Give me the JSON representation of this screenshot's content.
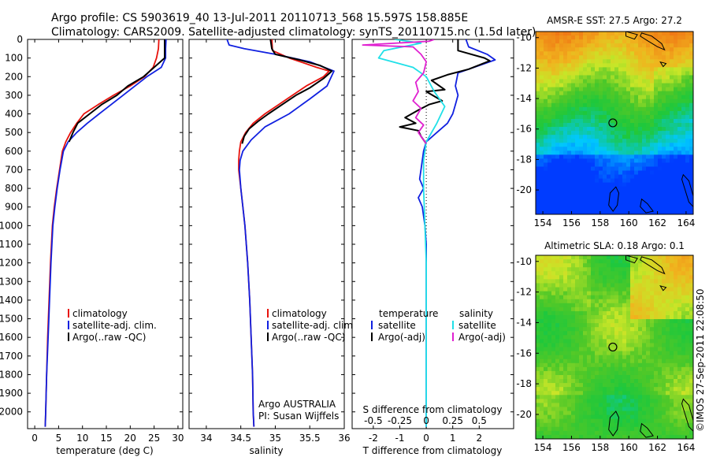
{
  "header": {
    "line1": "Argo profile: CS 5903619_40 13-Jul-2011 20110713_568 15.597S 158.885E",
    "line2": "Climatology: CARS2009. Satellite-adjusted climatology: synTS_20110715.nc (1.5d later)"
  },
  "side_text": "©IMOS 27-Sep-2011 22:08:50",
  "colors": {
    "climatology": "#e8120c",
    "satellite": "#1020e0",
    "argo": "#000000",
    "salinity_satellite": "#20e0e8",
    "salinity_argo": "#e020d0"
  },
  "chart_data": [
    {
      "type": "line",
      "id": "temperature",
      "xlabel": "temperature (deg C)",
      "xlim": [
        -1.5,
        31
      ],
      "xticks": [
        0,
        5,
        10,
        15,
        20,
        25,
        30
      ],
      "ylim": [
        0,
        2090
      ],
      "yticks": [
        0,
        100,
        200,
        300,
        400,
        500,
        600,
        700,
        800,
        900,
        1000,
        1100,
        1200,
        1300,
        1400,
        1500,
        1600,
        1700,
        1800,
        1900,
        2000
      ],
      "legend": [
        "climatology",
        "satellite-adj. clim.",
        "Argo(..raw -QC)"
      ],
      "series": [
        {
          "name": "climatology",
          "color": "#e8120c",
          "points": [
            [
              26.0,
              0
            ],
            [
              25.9,
              50
            ],
            [
              25.5,
              100
            ],
            [
              24.8,
              150
            ],
            [
              23.0,
              200
            ],
            [
              20.0,
              250
            ],
            [
              16.5,
              300
            ],
            [
              13.3,
              350
            ],
            [
              10.3,
              400
            ],
            [
              8.8,
              450
            ],
            [
              7.5,
              500
            ],
            [
              6.5,
              550
            ],
            [
              5.8,
              600
            ],
            [
              5.2,
              700
            ],
            [
              4.6,
              800
            ],
            [
              4.1,
              900
            ],
            [
              3.7,
              1000
            ],
            [
              3.3,
              1200
            ],
            [
              3.0,
              1400
            ],
            [
              2.7,
              1600
            ],
            [
              2.5,
              1800
            ],
            [
              2.3,
              2000
            ],
            [
              2.2,
              2080
            ]
          ]
        },
        {
          "name": "satellite-adj. clim.",
          "color": "#1020e0",
          "points": [
            [
              27.5,
              0
            ],
            [
              27.4,
              50
            ],
            [
              27.4,
              100
            ],
            [
              26.5,
              150
            ],
            [
              23.5,
              200
            ],
            [
              21.0,
              250
            ],
            [
              18.5,
              300
            ],
            [
              16.0,
              350
            ],
            [
              13.5,
              400
            ],
            [
              11.0,
              450
            ],
            [
              8.8,
              500
            ],
            [
              7.0,
              550
            ],
            [
              6.0,
              600
            ],
            [
              5.3,
              700
            ],
            [
              4.7,
              800
            ],
            [
              4.2,
              900
            ],
            [
              3.8,
              1000
            ],
            [
              3.4,
              1200
            ],
            [
              3.1,
              1400
            ],
            [
              2.8,
              1600
            ],
            [
              2.5,
              1800
            ],
            [
              2.3,
              2000
            ],
            [
              2.2,
              2080
            ]
          ]
        },
        {
          "name": "Argo(..raw -QC)",
          "color": "#000000",
          "points": [
            [
              27.2,
              0
            ],
            [
              27.2,
              60
            ],
            [
              27.2,
              100
            ],
            [
              25.0,
              150
            ],
            [
              22.8,
              200
            ],
            [
              19.5,
              250
            ],
            [
              17.2,
              300
            ],
            [
              14.0,
              350
            ],
            [
              11.5,
              400
            ],
            [
              10.0,
              430
            ],
            [
              9.0,
              450
            ],
            [
              8.0,
              500
            ],
            [
              7.2,
              550
            ]
          ]
        }
      ]
    },
    {
      "type": "line",
      "id": "salinity",
      "xlabel": "salinity",
      "xlim": [
        33.75,
        36.0
      ],
      "xticks": [
        34,
        34.5,
        35,
        35.5,
        36
      ],
      "ylim": [
        0,
        2090
      ],
      "legend": [
        "climatology",
        "satellite-adj. clim.",
        "Argo(..raw -QC)"
      ],
      "annotation": [
        "Argo AUSTRALIA",
        "PI: Susan Wijffels"
      ],
      "series": [
        {
          "name": "climatology",
          "color": "#e8120c",
          "points": [
            [
              34.95,
              0
            ],
            [
              34.96,
              60
            ],
            [
              35.2,
              100
            ],
            [
              35.6,
              150
            ],
            [
              35.78,
              170
            ],
            [
              35.7,
              200
            ],
            [
              35.45,
              250
            ],
            [
              35.25,
              300
            ],
            [
              35.05,
              350
            ],
            [
              34.85,
              400
            ],
            [
              34.68,
              450
            ],
            [
              34.57,
              500
            ],
            [
              34.5,
              550
            ],
            [
              34.48,
              600
            ],
            [
              34.47,
              650
            ],
            [
              34.47,
              700
            ],
            [
              34.5,
              800
            ],
            [
              34.53,
              900
            ],
            [
              34.56,
              1000
            ],
            [
              34.6,
              1200
            ],
            [
              34.63,
              1400
            ],
            [
              34.65,
              1600
            ],
            [
              34.67,
              1800
            ],
            [
              34.68,
              2000
            ],
            [
              34.69,
              2080
            ]
          ]
        },
        {
          "name": "satellite-adj. clim.",
          "color": "#1020e0",
          "points": [
            [
              34.3,
              0
            ],
            [
              34.33,
              30
            ],
            [
              34.55,
              50
            ],
            [
              35.0,
              80
            ],
            [
              35.5,
              120
            ],
            [
              35.85,
              170
            ],
            [
              35.75,
              250
            ],
            [
              35.5,
              320
            ],
            [
              35.2,
              400
            ],
            [
              34.85,
              470
            ],
            [
              34.65,
              540
            ],
            [
              34.53,
              600
            ],
            [
              34.49,
              650
            ],
            [
              34.48,
              700
            ],
            [
              34.5,
              800
            ],
            [
              34.53,
              900
            ],
            [
              34.56,
              1000
            ],
            [
              34.6,
              1200
            ],
            [
              34.63,
              1400
            ],
            [
              34.65,
              1600
            ],
            [
              34.67,
              1800
            ],
            [
              34.68,
              2000
            ],
            [
              34.69,
              2080
            ]
          ]
        },
        {
          "name": "Argo(..raw -QC)",
          "color": "#000000",
          "points": [
            [
              34.93,
              0
            ],
            [
              34.95,
              50
            ],
            [
              35.0,
              80
            ],
            [
              35.35,
              110
            ],
            [
              35.65,
              140
            ],
            [
              35.82,
              170
            ],
            [
              35.7,
              210
            ],
            [
              35.5,
              260
            ],
            [
              35.3,
              300
            ],
            [
              35.1,
              350
            ],
            [
              34.9,
              400
            ],
            [
              34.75,
              440
            ],
            [
              34.62,
              480
            ],
            [
              34.55,
              520
            ],
            [
              34.52,
              560
            ]
          ]
        }
      ]
    },
    {
      "type": "line",
      "id": "difference",
      "xlabel_bottom": "T difference from climatology",
      "xlabel_top": "S difference from climatology",
      "xlim": [
        -2.8,
        3.3
      ],
      "xticks": [
        -2,
        -1,
        0,
        1,
        2
      ],
      "xticks_top": [
        "-0.5",
        "-0.25",
        "0",
        "0.25",
        "0.5"
      ],
      "ylim": [
        0,
        2090
      ],
      "legend_temperature": {
        "title": "temperature",
        "items": [
          "satellite",
          "Argo(-adj)"
        ]
      },
      "legend_salinity": {
        "title": "salinity",
        "items": [
          "satellite",
          "Argo(-adj)"
        ]
      },
      "series": [
        {
          "name": "satellite",
          "group": "temperature",
          "color": "#1020e0",
          "points": [
            [
              1.5,
              0
            ],
            [
              1.6,
              40
            ],
            [
              2.3,
              80
            ],
            [
              2.6,
              110
            ],
            [
              2.0,
              140
            ],
            [
              1.2,
              180
            ],
            [
              1.1,
              250
            ],
            [
              1.2,
              300
            ],
            [
              1.1,
              350
            ],
            [
              1.0,
              400
            ],
            [
              0.8,
              450
            ],
            [
              0.4,
              500
            ],
            [
              0.0,
              550
            ],
            [
              -0.1,
              600
            ],
            [
              -0.2,
              700
            ],
            [
              -0.25,
              750
            ],
            [
              -0.1,
              800
            ],
            [
              -0.3,
              850
            ],
            [
              -0.15,
              900
            ],
            [
              -0.05,
              1000
            ],
            [
              0.0,
              1100
            ],
            [
              0.0,
              2080
            ]
          ]
        },
        {
          "name": "Argo(-adj)",
          "group": "temperature",
          "color": "#000000",
          "points": [
            [
              1.2,
              0
            ],
            [
              1.2,
              60
            ],
            [
              2.2,
              100
            ],
            [
              2.4,
              115
            ],
            [
              1.6,
              160
            ],
            [
              0.8,
              190
            ],
            [
              0.2,
              220
            ],
            [
              0.7,
              270
            ],
            [
              0.0,
              280
            ],
            [
              0.6,
              330
            ],
            [
              0.1,
              350
            ],
            [
              -0.3,
              380
            ],
            [
              -0.8,
              420
            ],
            [
              -0.4,
              450
            ],
            [
              -1.0,
              470
            ],
            [
              -0.3,
              490
            ],
            [
              -0.2,
              520
            ],
            [
              0.0,
              560
            ]
          ]
        },
        {
          "name": "satellite",
          "group": "salinity",
          "color": "#20e0e8",
          "points": [
            [
              -1.2,
              0
            ],
            [
              -0.2,
              20
            ],
            [
              -1.6,
              60
            ],
            [
              -1.8,
              100
            ],
            [
              -0.5,
              150
            ],
            [
              0.0,
              200
            ],
            [
              0.3,
              280
            ],
            [
              0.7,
              360
            ],
            [
              0.4,
              450
            ],
            [
              0.0,
              550
            ],
            [
              -0.1,
              650
            ],
            [
              -0.1,
              800
            ],
            [
              -0.05,
              1000
            ],
            [
              0.0,
              1200
            ],
            [
              0.0,
              2080
            ]
          ]
        },
        {
          "name": "Argo(-adj)",
          "group": "salinity",
          "color": "#e020d0",
          "points": [
            [
              0.3,
              0
            ],
            [
              0.1,
              10
            ],
            [
              -2.4,
              30
            ],
            [
              -0.5,
              40
            ],
            [
              -0.2,
              80
            ],
            [
              0.0,
              120
            ],
            [
              -0.1,
              180
            ],
            [
              -0.4,
              230
            ],
            [
              -0.3,
              280
            ],
            [
              -0.5,
              330
            ],
            [
              -0.2,
              370
            ],
            [
              -0.4,
              420
            ],
            [
              -0.1,
              460
            ],
            [
              -0.3,
              500
            ],
            [
              0.0,
              560
            ]
          ]
        }
      ]
    },
    {
      "type": "heatmap",
      "id": "sst_map",
      "title": "AMSR-E SST: 27.5 Argo: 27.2",
      "xlim": [
        153.5,
        164.5
      ],
      "ylim": [
        -21.6,
        -9.6
      ],
      "xticks": [
        154,
        156,
        158,
        160,
        162,
        164
      ],
      "yticks": [
        -10,
        -12,
        -14,
        -16,
        -18,
        -20
      ],
      "marker": {
        "lon": 158.885,
        "lat": -15.597
      }
    },
    {
      "type": "heatmap",
      "id": "sla_map",
      "title": "Altimetric SLA: 0.18 Argo: 0.1",
      "xlim": [
        153.5,
        164.5
      ],
      "ylim": [
        -21.6,
        -9.6
      ],
      "xticks": [
        154,
        156,
        158,
        160,
        162,
        164
      ],
      "yticks": [
        -10,
        -12,
        -14,
        -16,
        -18,
        -20
      ],
      "marker": {
        "lon": 158.885,
        "lat": -15.597
      }
    }
  ]
}
